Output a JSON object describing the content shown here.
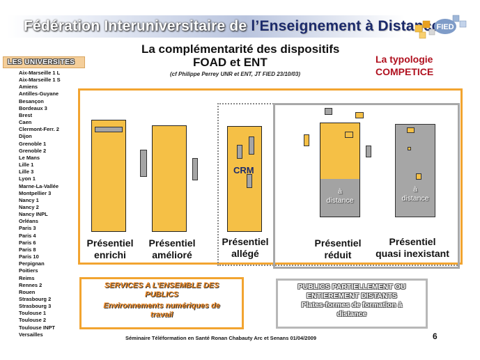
{
  "header": {
    "title_light": "Fédération Interuniversitaire de",
    "title_dark": "l’Enseignement à Distance",
    "logo_icon": "fied-puzzle-logo-icon",
    "logo_text": "FIED"
  },
  "sidebar": {
    "heading": "LES UNIVERSITES",
    "items": [
      "Aix-Marseille 1 L",
      "Aix-Marseille 1 S",
      "Amiens",
      "Antilles-Guyane",
      "Besançon",
      "Bordeaux 3",
      "Brest",
      "Caen",
      "Clermont-Ferr. 2",
      "Dijon",
      "Grenoble 1",
      "Grenoble 2",
      "Le Mans",
      "Lille 1",
      "Lille 3",
      "Lyon 1",
      "Marne-La-Vallée",
      "Montpellier 3",
      "Nancy 1",
      "Nancy 2",
      "Nancy INPL",
      "Orléans",
      "Paris 3",
      "Paris 4",
      "Paris 6",
      "Paris 8",
      "Paris 10",
      "Perpignan",
      "Poitiers",
      "Reims",
      "Rennes 2",
      "Rouen",
      "Strasbourg 2",
      "Strasbourg 3",
      "Toulouse 1",
      "Toulouse 2",
      "Toulouse INPT",
      "Versailles"
    ]
  },
  "main": {
    "title_line1": "La complémentarité des dispositifs",
    "title_line2": "FOAD et ENT",
    "subtitle": "(cf Philippe Perrey UNR  et ENT,  JT FIED 23/10/03)",
    "typology_line1": "La typologie",
    "typology_line2": "COMPETICE",
    "crm_label": "CRM",
    "a_distance_1": "à",
    "a_distance_2": "distance",
    "columns": [
      {
        "line1": "Présentiel",
        "line2": "enrichi"
      },
      {
        "line1": "Présentiel",
        "line2": "amélioré"
      },
      {
        "line1": "Présentiel",
        "line2": "allégé"
      },
      {
        "line1": "Présentiel",
        "line2": "réduit"
      },
      {
        "line1": "Présentiel",
        "line2": "quasi inexistant"
      }
    ],
    "colors": {
      "accent_orange": "#f2a430",
      "column_yellow": "#f5c046",
      "typology_red": "#b0101e",
      "frame_gray": "#a8a8a8"
    }
  },
  "boxes": {
    "services_line1": "SERVICES A L’ENSEMBLE DES",
    "services_line2": "PUBLICS",
    "services_line3": "Environnements numériques de",
    "services_line4": "travail",
    "publics_line1": "PUBLICS PARTIELLEMENT OU",
    "publics_line2": "ENTIEREMENT DISTANTS",
    "publics_line3": "Plates-formes de formation à",
    "publics_line4": "distance"
  },
  "footer": {
    "text": "Séminaire  Téléformation en Santé     Ronan Chabauty     Arc et Senans  01/04/2009",
    "page_number": "6"
  }
}
